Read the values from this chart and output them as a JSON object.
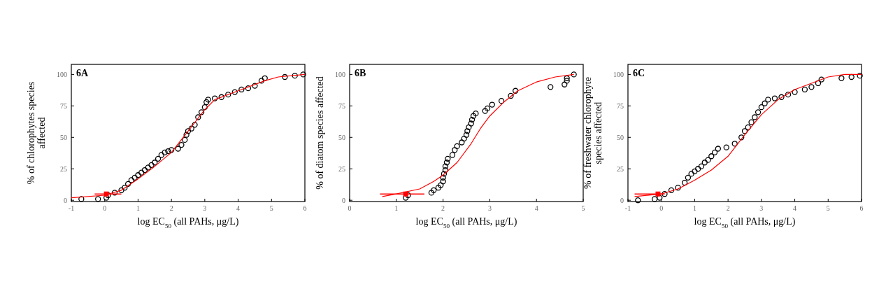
{
  "chart_data": [
    {
      "type": "scatter",
      "xlabel": "log EC$_{50}$ (all PAHs, μg/L)",
      "ylabel": "% of chlorophytes species affected",
      "annotations": [
        "6A"
      ],
      "xlim": [
        -1,
        6
      ],
      "xticks": [
        -1,
        0,
        1,
        2,
        3,
        4,
        5,
        6
      ],
      "ylim": [
        -1,
        108
      ],
      "yticks": [
        0,
        25,
        50,
        75,
        100
      ],
      "grid": false,
      "series": [
        {
          "marker": "circle",
          "color": "#000000",
          "x": [
            -0.7,
            -0.2,
            0.05,
            0.1,
            0.3,
            0.5,
            0.6,
            0.7,
            0.8,
            0.9,
            1.0,
            1.1,
            1.2,
            1.3,
            1.4,
            1.5,
            1.6,
            1.7,
            1.8,
            1.9,
            2.0,
            2.2,
            2.3,
            2.4,
            2.45,
            2.5,
            2.6,
            2.7,
            2.8,
            2.9,
            3.0,
            3.05,
            3.1,
            3.3,
            3.5,
            3.7,
            3.9,
            4.1,
            4.3,
            4.5,
            4.7,
            4.8,
            5.4,
            5.7,
            5.95
          ],
          "values": [
            1,
            1,
            2,
            4,
            6,
            8,
            10,
            13,
            16,
            18,
            20,
            22,
            24,
            26,
            28,
            30,
            33,
            36,
            38,
            39,
            40,
            41,
            44,
            48,
            52,
            55,
            57,
            60,
            66,
            70,
            74,
            78,
            80,
            81,
            82,
            84,
            86,
            88,
            89,
            91,
            95,
            97,
            98,
            99,
            100
          ]
        },
        {
          "type": "line",
          "color": "#ff0000",
          "x": [
            -1,
            0,
            0.5,
            1,
            1.5,
            2,
            2.5,
            3,
            3.3,
            4,
            4.8,
            5.2,
            6
          ],
          "values": [
            2,
            4,
            8,
            17,
            27,
            38,
            55,
            72,
            80,
            87,
            95,
            98,
            100
          ]
        },
        {
          "marker": "square",
          "color": "#ff0000",
          "x": [
            0.05
          ],
          "values": [
            5
          ],
          "xerrors": [
            [
              -0.3,
              0.5
            ]
          ]
        }
      ]
    },
    {
      "type": "scatter",
      "xlabel": "log EC$_{50}$ (all PAHs, μg/L)",
      "ylabel": "% of diatom species affected",
      "annotations": [
        "6B"
      ],
      "xlim": [
        0,
        5
      ],
      "xticks": [
        0,
        1,
        2,
        3,
        4,
        5
      ],
      "ylim": [
        -1,
        108
      ],
      "yticks": [
        0,
        25,
        50,
        75,
        100
      ],
      "grid": false,
      "series": [
        {
          "marker": "circle",
          "color": "#000000",
          "x": [
            1.2,
            1.25,
            1.75,
            1.8,
            1.9,
            1.95,
            2.0,
            2.0,
            2.02,
            2.05,
            2.05,
            2.08,
            2.1,
            2.2,
            2.25,
            2.3,
            2.4,
            2.45,
            2.5,
            2.52,
            2.55,
            2.6,
            2.62,
            2.65,
            2.7,
            2.9,
            2.95,
            3.05,
            3.25,
            3.45,
            3.55,
            4.3,
            4.6,
            4.65,
            4.65,
            4.8
          ],
          "values": [
            2,
            4,
            6,
            8,
            10,
            12,
            15,
            18,
            21,
            24,
            27,
            30,
            33,
            36,
            40,
            43,
            46,
            49,
            52,
            55,
            58,
            61,
            64,
            67,
            69,
            71,
            73,
            76,
            79,
            83,
            87,
            90,
            92,
            95,
            97,
            100
          ]
        },
        {
          "type": "line",
          "color": "#ff0000",
          "x": [
            0.7,
            1,
            1.5,
            1.8,
            2,
            2.3,
            2.6,
            2.8,
            3,
            3.3,
            3.6,
            4,
            4.4,
            4.8
          ],
          "values": [
            3,
            5,
            9,
            15,
            20,
            30,
            45,
            57,
            67,
            78,
            87,
            94,
            98,
            100
          ]
        },
        {
          "marker": "square",
          "color": "#ff0000",
          "x": [
            1.2
          ],
          "values": [
            5
          ],
          "xerrors": [
            [
              0.65,
              1.6
            ]
          ]
        }
      ]
    },
    {
      "type": "scatter",
      "xlabel": "log EC$_{50}$ (all PAHs, μg/L)",
      "ylabel": "% of freshwater chlorophyte species affected",
      "annotations": [
        "6C"
      ],
      "xlim": [
        -1,
        6
      ],
      "xticks": [
        -1,
        0,
        1,
        2,
        3,
        4,
        5,
        6
      ],
      "ylim": [
        -1,
        108
      ],
      "yticks": [
        0,
        25,
        50,
        75,
        100
      ],
      "grid": false,
      "series": [
        {
          "marker": "circle",
          "color": "#000000",
          "x": [
            -0.7,
            -0.2,
            -0.05,
            0.1,
            0.3,
            0.5,
            0.7,
            0.8,
            0.9,
            1.0,
            1.1,
            1.2,
            1.3,
            1.4,
            1.5,
            1.6,
            1.7,
            1.95,
            2.2,
            2.4,
            2.5,
            2.6,
            2.7,
            2.8,
            2.9,
            3.0,
            3.1,
            3.2,
            3.4,
            3.6,
            3.8,
            4.0,
            4.3,
            4.5,
            4.7,
            4.8,
            5.4,
            5.7,
            5.95
          ],
          "values": [
            0,
            1,
            2,
            5,
            8,
            10,
            14,
            18,
            21,
            23,
            25,
            27,
            30,
            32,
            35,
            38,
            41,
            42,
            45,
            50,
            55,
            58,
            62,
            66,
            70,
            74,
            77,
            80,
            81,
            82,
            84,
            86,
            88,
            90,
            93,
            96,
            97,
            98,
            99
          ]
        },
        {
          "type": "line",
          "color": "#ff0000",
          "x": [
            -0.8,
            0,
            0.5,
            1,
            1.5,
            2,
            2.5,
            3,
            3.5,
            4,
            4.5,
            5,
            5.5,
            6
          ],
          "values": [
            3,
            5,
            9,
            16,
            24,
            35,
            52,
            68,
            80,
            88,
            93,
            98,
            100,
            100
          ]
        },
        {
          "marker": "square",
          "color": "#ff0000",
          "x": [
            -0.1
          ],
          "values": [
            5
          ],
          "xerrors": [
            [
              -0.8,
              0.1
            ]
          ]
        }
      ]
    }
  ]
}
